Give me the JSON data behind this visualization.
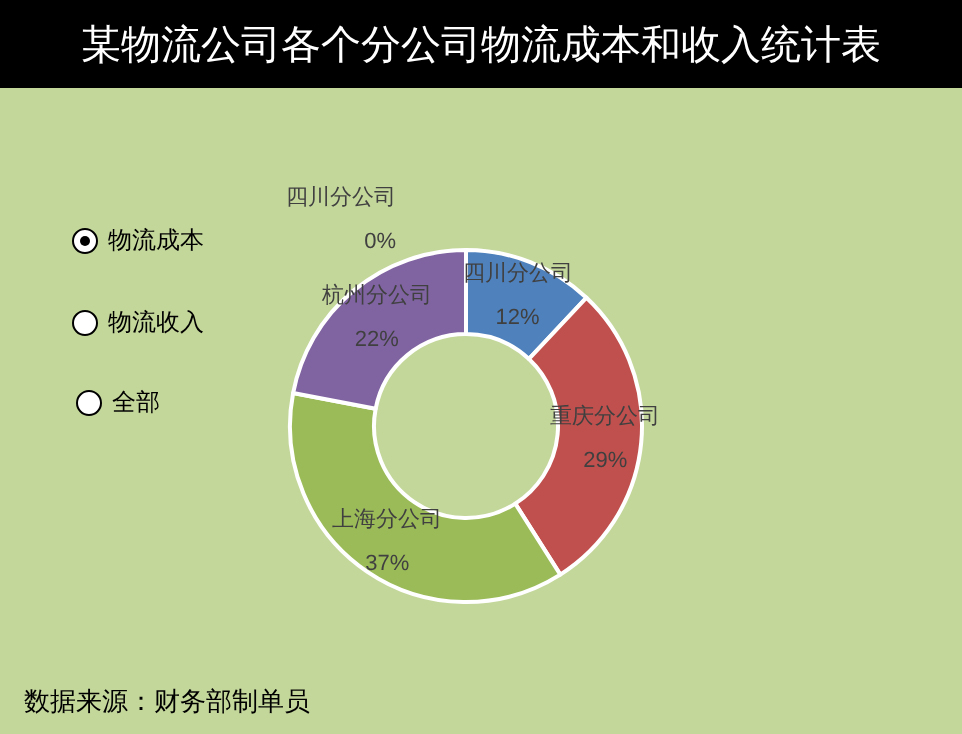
{
  "chart_data": {
    "type": "donut",
    "title": "某物流公司各个分公司物流成本和收入统计表",
    "categories": [
      "四川分公司",
      "四川分公司",
      "重庆分公司",
      "上海分公司",
      "杭州分公司"
    ],
    "values": [
      0,
      12,
      29,
      37,
      22
    ],
    "value_labels": [
      "0%",
      "12%",
      "29%",
      "37%",
      "22%"
    ],
    "colors": [
      "#4bacc6",
      "#4f81bd",
      "#c0504d",
      "#9bbb59",
      "#8064a2"
    ],
    "legend": false,
    "annotations": [
      "数据来源：财务部制单员",
      "物流成本",
      "物流收入",
      "全部"
    ]
  }
}
